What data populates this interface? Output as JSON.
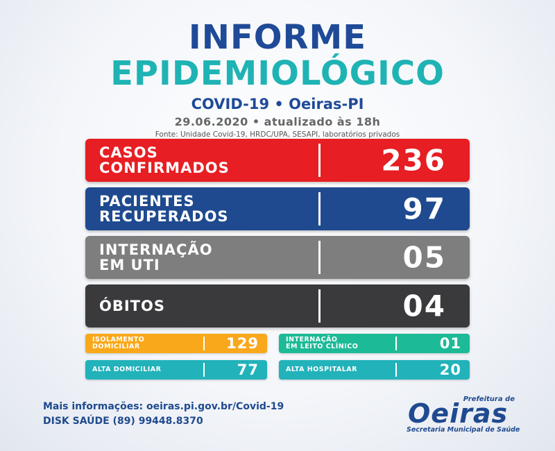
{
  "header": {
    "title_line1": "INFORME",
    "title_line2": "EPIDEMIOLÓGICO",
    "subtitle": "COVID-19 • Oeiras-PI",
    "date": "29.06.2020 • atualizado às 18h",
    "source": "Fonte: Unidade Covid-19, HRDC/UPA, SESAPI, laboratórios privados"
  },
  "stats": [
    {
      "label": "CASOS\nCONFIRMADOS",
      "value": "236",
      "color": "#e71e23"
    },
    {
      "label": "PACIENTES\nRECUPERADOS",
      "value": "97",
      "color": "#1f4a8f"
    },
    {
      "label": "INTERNAÇÃO\nEM UTI",
      "value": "05",
      "color": "#7e7e7e"
    },
    {
      "label": "ÓBITOS",
      "value": "04",
      "color": "#3a3a3c"
    }
  ],
  "small_stats": [
    {
      "label": "ISOLAMENTO\nDOMICILIAR",
      "value": "129",
      "color": "#f9a81b"
    },
    {
      "label": "INTERNAÇÃO\nEM LEITO CLÍNICO",
      "value": "01",
      "color": "#1dba97"
    },
    {
      "label": "ALTA DOMICILIAR",
      "value": "77",
      "color": "#22b2ba"
    },
    {
      "label": "ALTA HOSPITALAR",
      "value": "20",
      "color": "#22b2ba"
    }
  ],
  "footer": {
    "info_line": "Mais informações: oeiras.pi.gov.br/Covid-19",
    "phone_line": "DISK SAÚDE (89) 99448.8370"
  },
  "logo": {
    "prefeitura": "Prefeitura de",
    "name": "Oeiras",
    "secretaria": "Secretaria Municipal de Saúde"
  }
}
